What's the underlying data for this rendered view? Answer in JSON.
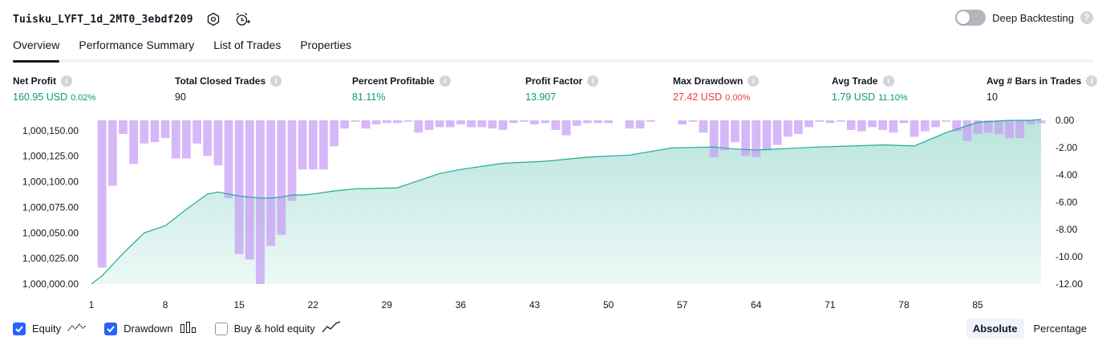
{
  "header": {
    "strategy_name": "Tuisku_LYFT_1d_2MT0_3ebdf209",
    "deep_backtesting_label": "Deep Backtesting",
    "deep_backtesting_enabled": false
  },
  "tabs": [
    {
      "label": "Overview",
      "active": true
    },
    {
      "label": "Performance Summary",
      "active": false
    },
    {
      "label": "List of Trades",
      "active": false
    },
    {
      "label": "Properties",
      "active": false
    }
  ],
  "metrics": {
    "net_profit": {
      "label": "Net Profit",
      "value": "160.95 USD",
      "sub": "0.02%"
    },
    "total_closed_trades": {
      "label": "Total Closed Trades",
      "value": "90"
    },
    "percent_profitable": {
      "label": "Percent Profitable",
      "value": "81.11%"
    },
    "profit_factor": {
      "label": "Profit Factor",
      "value": "13.907"
    },
    "max_drawdown": {
      "label": "Max Drawdown",
      "value": "27.42 USD",
      "sub": "0.00%"
    },
    "avg_trade": {
      "label": "Avg Trade",
      "value": "1.79 USD",
      "sub": "11.10%"
    },
    "avg_bars": {
      "label": "Avg # Bars in Trades",
      "value": "10"
    }
  },
  "chart_data": {
    "type": "area",
    "x_ticks": [
      "1",
      "8",
      "15",
      "22",
      "29",
      "36",
      "43",
      "50",
      "57",
      "64",
      "71",
      "78",
      "85"
    ],
    "y_left_ticks": [
      "1,000,000.00",
      "1,000,025.00",
      "1,000,050.00",
      "1,000,075.00",
      "1,000,100.00",
      "1,000,125.00",
      "1,000,150.00"
    ],
    "y_right_ticks": [
      "0.00",
      "-2.00",
      "-4.00",
      "-6.00",
      "-8.00",
      "-10.00",
      "-12.00"
    ],
    "ylim_left": [
      1000000,
      1000160
    ],
    "ylim_right": [
      -12,
      0
    ],
    "x_range": [
      1,
      91
    ],
    "colors": {
      "equity_line": "#22ab94",
      "equity_fill": "#22ab94",
      "drawdown": "#c69cf5"
    },
    "series": [
      {
        "name": "Equity",
        "x": [
          1,
          2,
          4,
          6,
          8,
          10,
          12,
          13,
          14,
          15,
          16,
          17,
          18,
          19,
          20,
          21,
          22,
          24,
          26,
          30,
          34,
          36,
          40,
          44,
          48,
          52,
          56,
          60,
          62,
          64,
          66,
          70,
          76,
          79,
          82,
          85,
          88,
          90,
          91
        ],
        "values": [
          1000000,
          1000008,
          1000030,
          1000050,
          1000057,
          1000073,
          1000088,
          1000090,
          1000088,
          1000086,
          1000085,
          1000084,
          1000084,
          1000085,
          1000087,
          1000087,
          1000088,
          1000091,
          1000093,
          1000094,
          1000108,
          1000112,
          1000118,
          1000120,
          1000124,
          1000126,
          1000133,
          1000134,
          1000132,
          1000131,
          1000132,
          1000134,
          1000136,
          1000135,
          1000148,
          1000158,
          1000160,
          1000160,
          1000161
        ]
      },
      {
        "name": "Drawdown",
        "x": [
          1,
          2,
          3,
          4,
          5,
          6,
          7,
          8,
          9,
          10,
          11,
          12,
          13,
          14,
          15,
          16,
          17,
          18,
          19,
          20,
          21,
          22,
          23,
          24,
          25,
          26,
          27,
          28,
          29,
          30,
          31,
          32,
          33,
          34,
          35,
          36,
          37,
          38,
          39,
          40,
          41,
          42,
          43,
          44,
          45,
          46,
          47,
          48,
          49,
          50,
          51,
          52,
          53,
          54,
          55,
          56,
          57,
          58,
          59,
          60,
          61,
          62,
          63,
          64,
          65,
          66,
          67,
          68,
          69,
          70,
          71,
          72,
          73,
          74,
          75,
          76,
          77,
          78,
          79,
          80,
          81,
          82,
          83,
          84,
          85,
          86,
          87,
          88,
          89,
          90,
          91
        ],
        "values": [
          0,
          -10.8,
          -4.8,
          -1.0,
          -3.2,
          -1.7,
          -1.6,
          -1.3,
          -2.8,
          -2.8,
          -1.7,
          -2.6,
          -3.3,
          -5.7,
          -9.8,
          -10.2,
          -12.0,
          -9.2,
          -8.4,
          -5.9,
          -3.6,
          -3.6,
          -3.6,
          -1.9,
          -0.6,
          -0.1,
          -0.6,
          -0.3,
          -0.2,
          -0.2,
          -0.1,
          -0.9,
          -0.7,
          -0.5,
          -0.5,
          -0.3,
          -0.5,
          -0.5,
          -0.6,
          -0.7,
          -0.2,
          -0.1,
          -0.3,
          -0.2,
          -0.7,
          -1.1,
          -0.4,
          -0.2,
          -0.2,
          -0.2,
          0,
          -0.6,
          -0.6,
          -0.1,
          0,
          0,
          -0.3,
          -0.1,
          -0.9,
          -2.7,
          -2.2,
          -1.6,
          -2.6,
          -2.7,
          -2.2,
          -1.8,
          -1.2,
          -1.0,
          -0.5,
          -0.1,
          -0.2,
          -0.1,
          -0.7,
          -0.8,
          -0.5,
          -0.7,
          -0.9,
          -0.2,
          -1.2,
          -0.8,
          -0.5,
          -0.1,
          -0.8,
          -1.5,
          -1.0,
          -0.9,
          -1.0,
          -1.3,
          -1.3,
          -0.3,
          -0.2
        ]
      }
    ]
  },
  "legend": {
    "equity": {
      "label": "Equity",
      "checked": true
    },
    "drawdown": {
      "label": "Drawdown",
      "checked": true
    },
    "buy_hold": {
      "label": "Buy & hold equity",
      "checked": false
    }
  },
  "view_mode": {
    "absolute": "Absolute",
    "percentage": "Percentage",
    "selected": "Absolute"
  }
}
